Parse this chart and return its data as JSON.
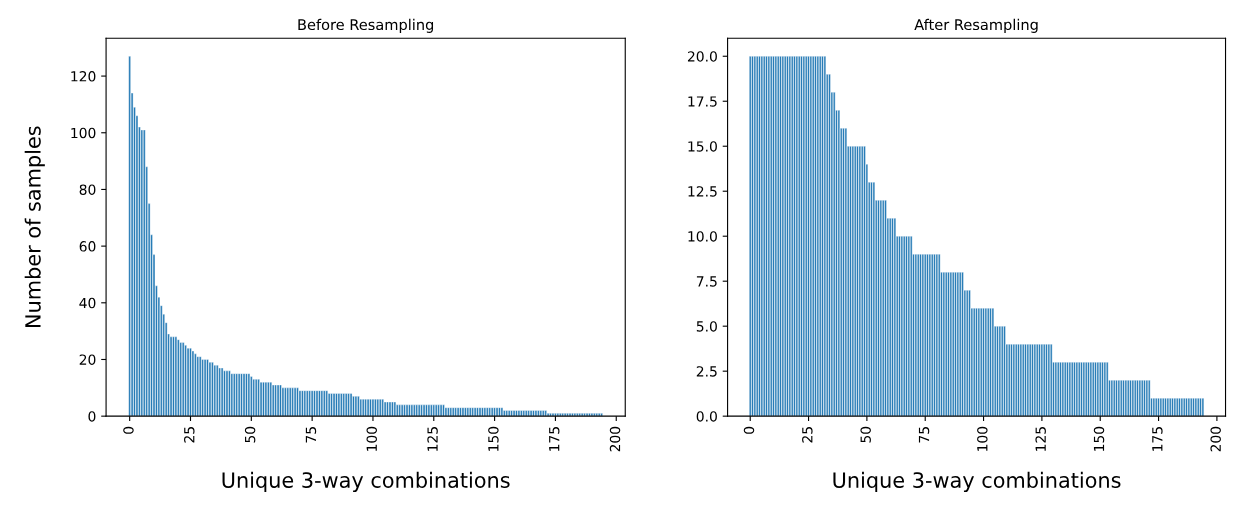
{
  "chart_data": [
    {
      "type": "bar",
      "title": "Before Resampling",
      "xlabel": "Unique 3-way combinations",
      "ylabel": "Number of samples",
      "color": "#1f77b4",
      "x": [
        0,
        1,
        2,
        3,
        4,
        5,
        6,
        7,
        8,
        9,
        10,
        11,
        12,
        13,
        14,
        15,
        16,
        17,
        18,
        19,
        20,
        21,
        22,
        23,
        24,
        25,
        26,
        27,
        28,
        29,
        30,
        31,
        32,
        33,
        34,
        35,
        36,
        37,
        38,
        39,
        40,
        41,
        42,
        43,
        44,
        45,
        46,
        47,
        48,
        49,
        50,
        51,
        52,
        53,
        54,
        55,
        56,
        57,
        58,
        59,
        60,
        61,
        62,
        63,
        64,
        65,
        66,
        67,
        68,
        69,
        70,
        71,
        72,
        73,
        74,
        75,
        76,
        77,
        78,
        79,
        80,
        81,
        82,
        83,
        84,
        85,
        86,
        87,
        88,
        89,
        90,
        91,
        92,
        93,
        94,
        95,
        96,
        97,
        98,
        99,
        100,
        101,
        102,
        103,
        104,
        105,
        106,
        107,
        108,
        109,
        110,
        111,
        112,
        113,
        114,
        115,
        116,
        117,
        118,
        119,
        120,
        121,
        122,
        123,
        124,
        125,
        126,
        127,
        128,
        129,
        130,
        131,
        132,
        133,
        134,
        135,
        136,
        137,
        138,
        139,
        140,
        141,
        142,
        143,
        144,
        145,
        146,
        147,
        148,
        149,
        150,
        151,
        152,
        153,
        154,
        155,
        156,
        157,
        158,
        159,
        160,
        161,
        162,
        163,
        164,
        165,
        166,
        167,
        168,
        169,
        170,
        171,
        172,
        173,
        174,
        175,
        176,
        177,
        178,
        179,
        180,
        181,
        182,
        183,
        184,
        185,
        186,
        187,
        188,
        189,
        190,
        191,
        192,
        193,
        194
      ],
      "values": [
        127,
        114,
        109,
        106,
        102,
        101,
        101,
        88,
        75,
        64,
        57,
        46,
        42,
        39,
        36,
        33,
        29,
        28,
        28,
        28,
        27,
        26,
        26,
        25,
        24,
        24,
        23,
        22,
        21,
        21,
        20,
        20,
        20,
        19,
        19,
        18,
        18,
        17,
        17,
        16,
        16,
        16,
        15,
        15,
        15,
        15,
        15,
        15,
        15,
        15,
        14,
        13,
        13,
        13,
        12,
        12,
        12,
        12,
        12,
        11,
        11,
        11,
        11,
        10,
        10,
        10,
        10,
        10,
        10,
        10,
        9,
        9,
        9,
        9,
        9,
        9,
        9,
        9,
        9,
        9,
        9,
        9,
        8,
        8,
        8,
        8,
        8,
        8,
        8,
        8,
        8,
        8,
        7,
        7,
        7,
        6,
        6,
        6,
        6,
        6,
        6,
        6,
        6,
        6,
        6,
        5,
        5,
        5,
        5,
        5,
        4,
        4,
        4,
        4,
        4,
        4,
        4,
        4,
        4,
        4,
        4,
        4,
        4,
        4,
        4,
        4,
        4,
        4,
        4,
        4,
        3,
        3,
        3,
        3,
        3,
        3,
        3,
        3,
        3,
        3,
        3,
        3,
        3,
        3,
        3,
        3,
        3,
        3,
        3,
        3,
        3,
        3,
        3,
        3,
        2,
        2,
        2,
        2,
        2,
        2,
        2,
        2,
        2,
        2,
        2,
        2,
        2,
        2,
        2,
        2,
        2,
        2,
        1,
        1,
        1,
        1,
        1,
        1,
        1,
        1,
        1,
        1,
        1,
        1,
        1,
        1,
        1,
        1,
        1,
        1,
        1,
        1,
        1,
        1,
        1
      ],
      "xlim": [
        -9.7,
        203.7
      ],
      "xticks": [
        0,
        25,
        50,
        75,
        100,
        125,
        150,
        175,
        200
      ],
      "ylim": [
        0,
        133.35
      ],
      "yticks": [
        0,
        20,
        40,
        60,
        80,
        100,
        120
      ],
      "grid": false,
      "legend": false
    },
    {
      "type": "bar",
      "title": "After Resampling",
      "xlabel": "Unique 3-way combinations",
      "color": "#1f77b4",
      "x": [
        0,
        1,
        2,
        3,
        4,
        5,
        6,
        7,
        8,
        9,
        10,
        11,
        12,
        13,
        14,
        15,
        16,
        17,
        18,
        19,
        20,
        21,
        22,
        23,
        24,
        25,
        26,
        27,
        28,
        29,
        30,
        31,
        32,
        33,
        34,
        35,
        36,
        37,
        38,
        39,
        40,
        41,
        42,
        43,
        44,
        45,
        46,
        47,
        48,
        49,
        50,
        51,
        52,
        53,
        54,
        55,
        56,
        57,
        58,
        59,
        60,
        61,
        62,
        63,
        64,
        65,
        66,
        67,
        68,
        69,
        70,
        71,
        72,
        73,
        74,
        75,
        76,
        77,
        78,
        79,
        80,
        81,
        82,
        83,
        84,
        85,
        86,
        87,
        88,
        89,
        90,
        91,
        92,
        93,
        94,
        95,
        96,
        97,
        98,
        99,
        100,
        101,
        102,
        103,
        104,
        105,
        106,
        107,
        108,
        109,
        110,
        111,
        112,
        113,
        114,
        115,
        116,
        117,
        118,
        119,
        120,
        121,
        122,
        123,
        124,
        125,
        126,
        127,
        128,
        129,
        130,
        131,
        132,
        133,
        134,
        135,
        136,
        137,
        138,
        139,
        140,
        141,
        142,
        143,
        144,
        145,
        146,
        147,
        148,
        149,
        150,
        151,
        152,
        153,
        154,
        155,
        156,
        157,
        158,
        159,
        160,
        161,
        162,
        163,
        164,
        165,
        166,
        167,
        168,
        169,
        170,
        171,
        172,
        173,
        174,
        175,
        176,
        177,
        178,
        179,
        180,
        181,
        182,
        183,
        184,
        185,
        186,
        187,
        188,
        189,
        190,
        191,
        192,
        193,
        194
      ],
      "values": [
        20,
        20,
        20,
        20,
        20,
        20,
        20,
        20,
        20,
        20,
        20,
        20,
        20,
        20,
        20,
        20,
        20,
        20,
        20,
        20,
        20,
        20,
        20,
        20,
        20,
        20,
        20,
        20,
        20,
        20,
        20,
        20,
        20,
        19,
        19,
        18,
        18,
        17,
        17,
        16,
        16,
        16,
        15,
        15,
        15,
        15,
        15,
        15,
        15,
        15,
        14,
        13,
        13,
        13,
        12,
        12,
        12,
        12,
        12,
        11,
        11,
        11,
        11,
        10,
        10,
        10,
        10,
        10,
        10,
        10,
        9,
        9,
        9,
        9,
        9,
        9,
        9,
        9,
        9,
        9,
        9,
        9,
        8,
        8,
        8,
        8,
        8,
        8,
        8,
        8,
        8,
        8,
        7,
        7,
        7,
        6,
        6,
        6,
        6,
        6,
        6,
        6,
        6,
        6,
        6,
        5,
        5,
        5,
        5,
        5,
        4,
        4,
        4,
        4,
        4,
        4,
        4,
        4,
        4,
        4,
        4,
        4,
        4,
        4,
        4,
        4,
        4,
        4,
        4,
        4,
        3,
        3,
        3,
        3,
        3,
        3,
        3,
        3,
        3,
        3,
        3,
        3,
        3,
        3,
        3,
        3,
        3,
        3,
        3,
        3,
        3,
        3,
        3,
        3,
        2,
        2,
        2,
        2,
        2,
        2,
        2,
        2,
        2,
        2,
        2,
        2,
        2,
        2,
        2,
        2,
        2,
        2,
        1,
        1,
        1,
        1,
        1,
        1,
        1,
        1,
        1,
        1,
        1,
        1,
        1,
        1,
        1,
        1,
        1,
        1,
        1,
        1,
        1,
        1,
        1
      ],
      "xlim": [
        -9.7,
        203.7
      ],
      "xticks": [
        0,
        25,
        50,
        75,
        100,
        125,
        150,
        175,
        200
      ],
      "ylim": [
        0,
        21
      ],
      "yticks": [
        {
          "value": 0,
          "label": "0.0"
        },
        {
          "value": 2.5,
          "label": "2.5"
        },
        {
          "value": 5,
          "label": "5.0"
        },
        {
          "value": 7.5,
          "label": "7.5"
        },
        {
          "value": 10,
          "label": "10.0"
        },
        {
          "value": 12.5,
          "label": "12.5"
        },
        {
          "value": 15,
          "label": "15.0"
        },
        {
          "value": 17.5,
          "label": "17.5"
        },
        {
          "value": 20,
          "label": "20.0"
        }
      ],
      "grid": false,
      "legend": false
    }
  ]
}
